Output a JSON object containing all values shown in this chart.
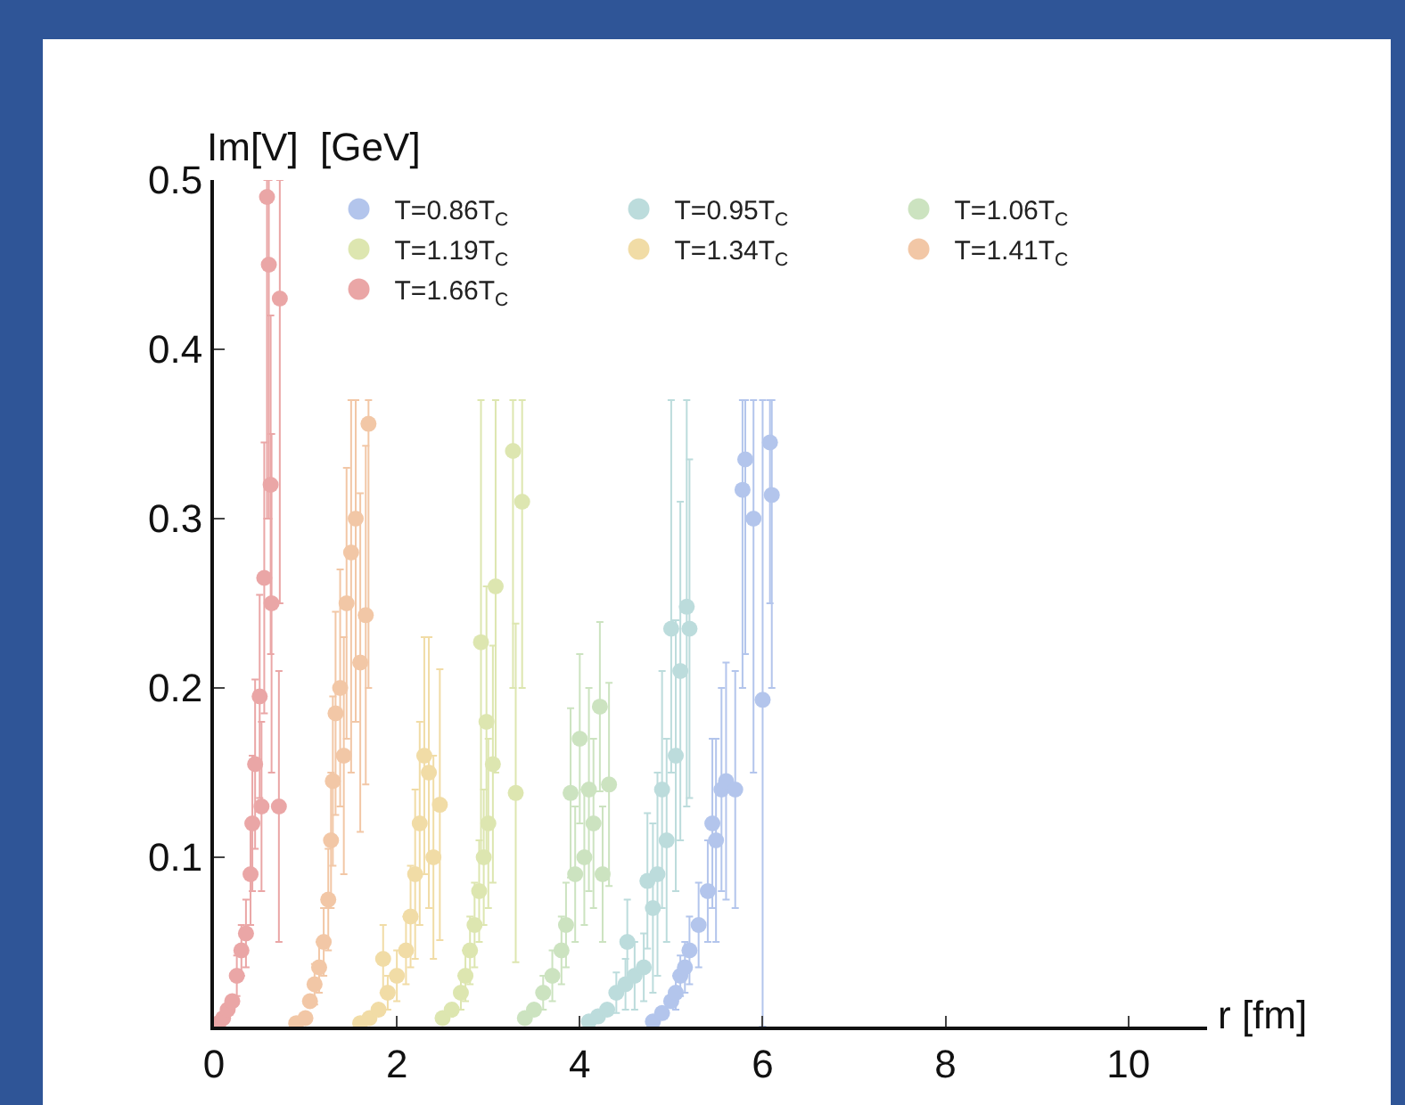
{
  "chart_data": {
    "type": "scatter",
    "xlabel": "r [fm]",
    "ylabel": "Im[V]  [GeV]",
    "xlim": [
      0,
      10.86
    ],
    "ylim": [
      0,
      0.5
    ],
    "xticks": [
      0,
      2,
      4,
      6,
      8,
      10
    ],
    "yticks": [
      {
        "value": 0.1,
        "label": "0.1"
      },
      {
        "value": 0.2,
        "label": "0.2"
      },
      {
        "value": 0.3,
        "label": "0.3"
      },
      {
        "value": 0.4,
        "label": "0.4"
      },
      {
        "value": 0.5,
        "label": "0.5"
      }
    ],
    "grid": false,
    "legend": "top",
    "marker": "circle",
    "series": [
      {
        "name": "T=0.86T$_{C}$",
        "color": "#b3c5ec",
        "x": [
          4.8,
          4.9,
          5.0,
          5.05,
          5.1,
          5.15,
          5.2,
          5.3,
          5.4,
          5.45,
          5.49,
          5.55,
          5.6,
          5.7,
          5.78,
          5.81,
          5.9,
          6.0,
          6.08,
          6.1
        ],
        "values": [
          0.003,
          0.008,
          0.015,
          0.02,
          0.03,
          0.035,
          0.045,
          0.06,
          0.08,
          0.12,
          0.11,
          0.14,
          0.145,
          0.14,
          0.317,
          0.335,
          0.3,
          0.193,
          0.345,
          0.314
        ],
        "errors": [
          null,
          null,
          null,
          0.01,
          0.012,
          0.015,
          0.02,
          0.025,
          0.03,
          0.05,
          0.06,
          0.06,
          0.07,
          0.07,
          [
            0.2,
            0.37
          ],
          [
            0.22,
            0.37
          ],
          [
            0.15,
            0.37
          ],
          [
            0,
            0.37
          ],
          [
            0.25,
            0.37
          ],
          [
            0.2,
            0.37
          ]
        ]
      },
      {
        "name": "T=0.95T$_{C}$",
        "color": "#bcdcdc",
        "x": [
          4.1,
          4.2,
          4.3,
          4.4,
          4.5,
          4.52,
          4.6,
          4.7,
          4.74,
          4.8,
          4.85,
          4.9,
          4.95,
          5.0,
          5.05,
          5.1,
          5.17,
          5.2
        ],
        "values": [
          0.003,
          0.006,
          0.01,
          0.02,
          0.025,
          0.05,
          0.03,
          0.035,
          0.086,
          0.07,
          0.09,
          0.14,
          0.11,
          0.235,
          0.16,
          0.21,
          0.248,
          0.235
        ],
        "errors": [
          null,
          null,
          null,
          0.012,
          0.015,
          0.025,
          0.02,
          0.02,
          0.04,
          0.05,
          0.06,
          0.07,
          0.06,
          [
            0.15,
            0.37
          ],
          0.08,
          0.1,
          [
            0.13,
            0.37
          ],
          0.1
        ]
      },
      {
        "name": "T=1.06T$_{C}$",
        "color": "#cce3c0",
        "x": [
          3.4,
          3.5,
          3.6,
          3.7,
          3.8,
          3.85,
          3.9,
          3.95,
          4.0,
          4.05,
          4.1,
          4.15,
          4.22,
          4.25,
          4.32
        ],
        "values": [
          0.005,
          0.01,
          0.02,
          0.03,
          0.045,
          0.06,
          0.138,
          0.09,
          0.17,
          0.1,
          0.14,
          0.12,
          0.189,
          0.09,
          0.143
        ],
        "errors": [
          null,
          null,
          0.01,
          0.015,
          0.02,
          0.025,
          0.05,
          0.04,
          0.05,
          0.04,
          0.06,
          0.05,
          0.05,
          0.04,
          0.06
        ]
      },
      {
        "name": "T=1.19T$_{C}$",
        "color": "#dde6b0",
        "x": [
          2.5,
          2.6,
          2.7,
          2.75,
          2.8,
          2.85,
          2.9,
          2.92,
          2.95,
          2.98,
          3.0,
          3.05,
          3.08,
          3.27,
          3.3,
          3.37
        ],
        "values": [
          0.005,
          0.01,
          0.02,
          0.03,
          0.045,
          0.06,
          0.08,
          0.227,
          0.1,
          0.18,
          0.12,
          0.155,
          0.26,
          0.34,
          0.138,
          0.31
        ],
        "errors": [
          null,
          null,
          0.01,
          0.015,
          0.02,
          0.025,
          0.03,
          [
            0.1,
            0.37
          ],
          0.04,
          0.08,
          0.05,
          0.07,
          [
            0.15,
            0.37
          ],
          [
            0.2,
            0.37
          ],
          0.1,
          [
            0.2,
            0.37
          ]
        ]
      },
      {
        "name": "T=1.34T$_{C}$",
        "color": "#f1dca6",
        "x": [
          1.6,
          1.7,
          1.8,
          1.85,
          1.9,
          2.0,
          2.1,
          2.15,
          2.2,
          2.25,
          2.3,
          2.35,
          2.4,
          2.47
        ],
        "values": [
          0.002,
          0.005,
          0.01,
          0.04,
          0.02,
          0.03,
          0.045,
          0.065,
          0.09,
          0.12,
          0.16,
          0.15,
          0.1,
          0.131
        ],
        "errors": [
          null,
          null,
          null,
          0.02,
          0.01,
          0.015,
          0.02,
          0.03,
          0.05,
          0.06,
          0.07,
          0.08,
          0.06,
          0.08
        ]
      },
      {
        "name": "T=1.41T$_{C}$",
        "color": "#f2c7a6",
        "x": [
          0.9,
          1.0,
          1.05,
          1.1,
          1.15,
          1.2,
          1.25,
          1.28,
          1.3,
          1.33,
          1.38,
          1.42,
          1.45,
          1.5,
          1.55,
          1.6,
          1.66,
          1.69
        ],
        "values": [
          0.002,
          0.005,
          0.015,
          0.025,
          0.035,
          0.05,
          0.075,
          0.11,
          0.145,
          0.185,
          0.2,
          0.16,
          0.25,
          0.28,
          0.3,
          0.215,
          0.243,
          0.356
        ],
        "errors": [
          null,
          null,
          null,
          0.012,
          0.015,
          0.02,
          0.03,
          0.04,
          0.05,
          0.06,
          0.07,
          0.07,
          0.08,
          [
            0.15,
            0.37
          ],
          [
            0.18,
            0.37
          ],
          0.1,
          0.1,
          [
            0.2,
            0.37
          ]
        ]
      },
      {
        "name": "T=1.66T$_{C}$",
        "color": "#eaa6a6",
        "x": [
          0.05,
          0.1,
          0.15,
          0.2,
          0.25,
          0.3,
          0.35,
          0.4,
          0.42,
          0.45,
          0.5,
          0.52,
          0.55,
          0.58,
          0.6,
          0.62,
          0.63,
          0.71,
          0.72
        ],
        "values": [
          0.002,
          0.005,
          0.01,
          0.015,
          0.03,
          0.045,
          0.055,
          0.09,
          0.12,
          0.155,
          0.195,
          0.13,
          0.265,
          0.49,
          0.45,
          0.32,
          0.25,
          0.13,
          0.43
        ],
        "errors": [
          null,
          null,
          null,
          null,
          0.012,
          0.015,
          0.02,
          0.03,
          0.04,
          0.05,
          0.06,
          0.05,
          0.08,
          [
            0.3,
            0.5
          ],
          [
            0.3,
            0.5
          ],
          0.1,
          0.1,
          0.08,
          [
            0.25,
            0.5
          ]
        ]
      }
    ]
  }
}
